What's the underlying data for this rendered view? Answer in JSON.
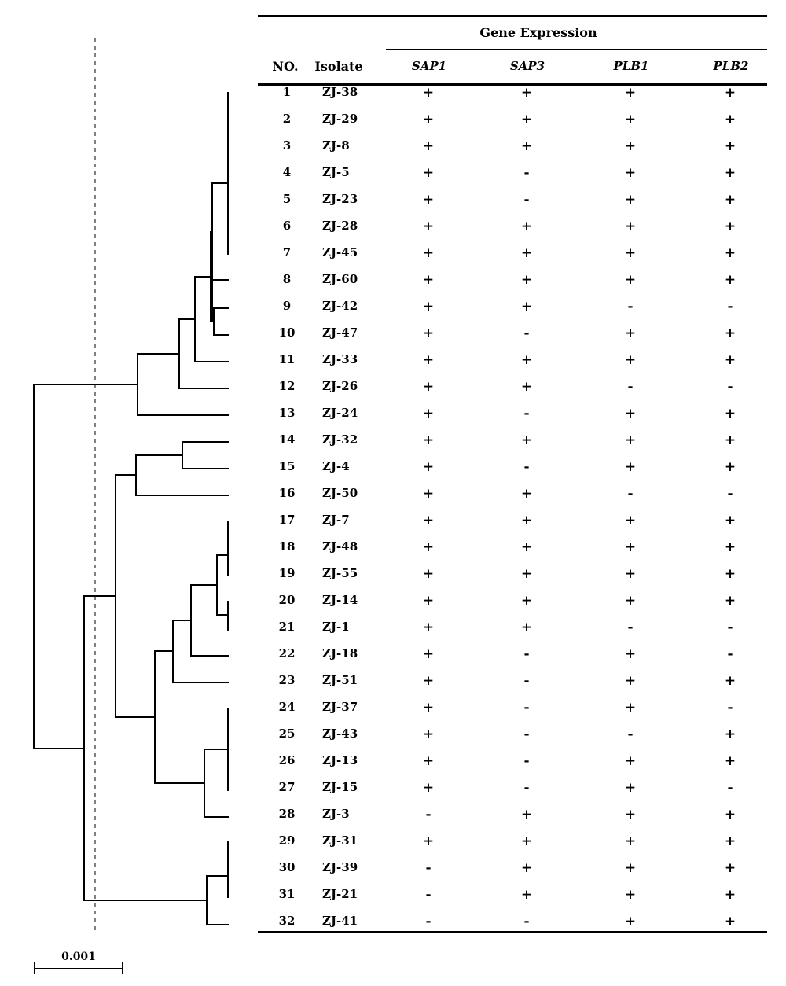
{
  "table": {
    "group_title": "Gene Expression",
    "col_no": "NO.",
    "col_isolate": "Isolate",
    "genes": [
      "SAP1",
      "SAP3",
      "PLB1",
      "PLB2"
    ],
    "rows": [
      {
        "no": "1",
        "isolate": "ZJ-38",
        "expr": [
          "+",
          "+",
          "+",
          "+"
        ]
      },
      {
        "no": "2",
        "isolate": "ZJ-29",
        "expr": [
          "+",
          "+",
          "+",
          "+"
        ]
      },
      {
        "no": "3",
        "isolate": "ZJ-8",
        "expr": [
          "+",
          "+",
          "+",
          "+"
        ]
      },
      {
        "no": "4",
        "isolate": "ZJ-5",
        "expr": [
          "+",
          "-",
          "+",
          "+"
        ]
      },
      {
        "no": "5",
        "isolate": "ZJ-23",
        "expr": [
          "+",
          "-",
          "+",
          "+"
        ]
      },
      {
        "no": "6",
        "isolate": "ZJ-28",
        "expr": [
          "+",
          "+",
          "+",
          "+"
        ]
      },
      {
        "no": "7",
        "isolate": "ZJ-45",
        "expr": [
          "+",
          "+",
          "+",
          "+"
        ]
      },
      {
        "no": "8",
        "isolate": "ZJ-60",
        "expr": [
          "+",
          "+",
          "+",
          "+"
        ]
      },
      {
        "no": "9",
        "isolate": "ZJ-42",
        "expr": [
          "+",
          "+",
          "-",
          "-"
        ]
      },
      {
        "no": "10",
        "isolate": "ZJ-47",
        "expr": [
          "+",
          "-",
          "+",
          "+"
        ]
      },
      {
        "no": "11",
        "isolate": "ZJ-33",
        "expr": [
          "+",
          "+",
          "+",
          "+"
        ]
      },
      {
        "no": "12",
        "isolate": "ZJ-26",
        "expr": [
          "+",
          "+",
          "-",
          "-"
        ]
      },
      {
        "no": "13",
        "isolate": "ZJ-24",
        "expr": [
          "+",
          "-",
          "+",
          "+"
        ]
      },
      {
        "no": "14",
        "isolate": "ZJ-32",
        "expr": [
          "+",
          "+",
          "+",
          "+"
        ]
      },
      {
        "no": "15",
        "isolate": "ZJ-4",
        "expr": [
          "+",
          "-",
          "+",
          "+"
        ]
      },
      {
        "no": "16",
        "isolate": "ZJ-50",
        "expr": [
          "+",
          "+",
          "-",
          "-"
        ]
      },
      {
        "no": "17",
        "isolate": "ZJ-7",
        "expr": [
          "+",
          "+",
          "+",
          "+"
        ]
      },
      {
        "no": "18",
        "isolate": "ZJ-48",
        "expr": [
          "+",
          "+",
          "+",
          "+"
        ]
      },
      {
        "no": "19",
        "isolate": "ZJ-55",
        "expr": [
          "+",
          "+",
          "+",
          "+"
        ]
      },
      {
        "no": "20",
        "isolate": "ZJ-14",
        "expr": [
          "+",
          "+",
          "+",
          "+"
        ]
      },
      {
        "no": "21",
        "isolate": "ZJ-1",
        "expr": [
          "+",
          "+",
          "-",
          "-"
        ]
      },
      {
        "no": "22",
        "isolate": "ZJ-18",
        "expr": [
          "+",
          "-",
          "+",
          "-"
        ]
      },
      {
        "no": "23",
        "isolate": "ZJ-51",
        "expr": [
          "+",
          "-",
          "+",
          "+"
        ]
      },
      {
        "no": "24",
        "isolate": "ZJ-37",
        "expr": [
          "+",
          "-",
          "+",
          "-"
        ]
      },
      {
        "no": "25",
        "isolate": "ZJ-43",
        "expr": [
          "+",
          "-",
          "-",
          "+"
        ]
      },
      {
        "no": "26",
        "isolate": "ZJ-13",
        "expr": [
          "+",
          "-",
          "+",
          "+"
        ]
      },
      {
        "no": "27",
        "isolate": "ZJ-15",
        "expr": [
          "+",
          "-",
          "+",
          "-"
        ]
      },
      {
        "no": "28",
        "isolate": "ZJ-3",
        "expr": [
          "-",
          "+",
          "+",
          "+"
        ]
      },
      {
        "no": "29",
        "isolate": "ZJ-31",
        "expr": [
          "+",
          "+",
          "+",
          "+"
        ]
      },
      {
        "no": "30",
        "isolate": "ZJ-39",
        "expr": [
          "-",
          "+",
          "+",
          "+"
        ]
      },
      {
        "no": "31",
        "isolate": "ZJ-21",
        "expr": [
          "-",
          "+",
          "+",
          "+"
        ]
      },
      {
        "no": "32",
        "isolate": "ZJ-41",
        "expr": [
          "-",
          "-",
          "+",
          "+"
        ]
      }
    ]
  },
  "scale": {
    "label": "0.001"
  }
}
